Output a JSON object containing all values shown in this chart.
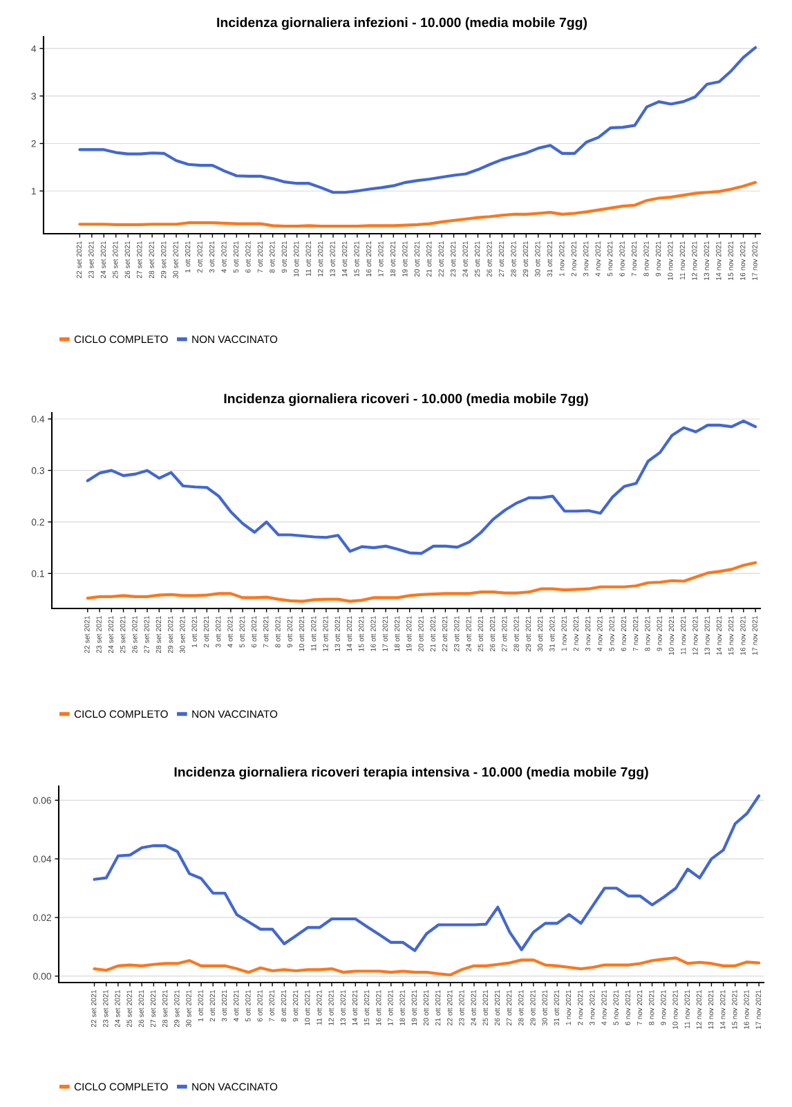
{
  "chart_data": [
    {
      "type": "line",
      "title": "Incidenza giornaliera infezioni - 10.000 (media mobile 7gg)",
      "categories": [
        "22 set 2021",
        "23 set 2021",
        "24 set 2021",
        "25 set 2021",
        "26 set 2021",
        "27 set 2021",
        "28 set 2021",
        "29 set 2021",
        "30 set 2021",
        "1 ott 2021",
        "2 ott 2021",
        "3 ott 2021",
        "4 ott 2021",
        "5 ott 2021",
        "6 ott 2021",
        "7 ott 2021",
        "8 ott 2021",
        "9 ott 2021",
        "10 ott 2021",
        "11 ott 2021",
        "12 ott 2021",
        "13 ott 2021",
        "14 ott 2021",
        "15 ott 2021",
        "16 ott 2021",
        "17 ott 2021",
        "18 ott 2021",
        "19 ott 2021",
        "20 ott 2021",
        "21 ott 2021",
        "22 ott 2021",
        "23 ott 2021",
        "24 ott 2021",
        "25 ott 2021",
        "26 ott 2021",
        "27 ott 2021",
        "28 ott 2021",
        "29 ott 2021",
        "30 ott 2021",
        "31 ott 2021",
        "1 nov 2021",
        "2 nov 2021",
        "3 nov 2021",
        "4 nov 2021",
        "5 nov 2021",
        "6 nov 2021",
        "7 nov 2021",
        "8 nov 2021",
        "9 nov 2021",
        "10 nov 2021",
        "11 nov 2021",
        "12 nov 2021",
        "13 nov 2021",
        "14 nov 2021",
        "15 nov 2021",
        "16 nov 2021",
        "17 nov 2021"
      ],
      "series": [
        {
          "name": "CICLO COMPLETO",
          "color": "#ff7518",
          "values": [
            0.3,
            0.3,
            0.3,
            0.29,
            0.29,
            0.29,
            0.3,
            0.3,
            0.3,
            0.33,
            0.33,
            0.33,
            0.32,
            0.31,
            0.31,
            0.31,
            0.27,
            0.26,
            0.26,
            0.27,
            0.26,
            0.26,
            0.26,
            0.26,
            0.27,
            0.27,
            0.27,
            0.28,
            0.29,
            0.31,
            0.35,
            0.38,
            0.41,
            0.44,
            0.46,
            0.49,
            0.51,
            0.51,
            0.53,
            0.55,
            0.51,
            0.53,
            0.56,
            0.6,
            0.64,
            0.68,
            0.7,
            0.8,
            0.85,
            0.87,
            0.91,
            0.95,
            0.97,
            0.99,
            1.04,
            1.1,
            1.18
          ]
        },
        {
          "name": "NON VACCINATO",
          "color": "#4267d2",
          "values": [
            1.87,
            1.87,
            1.87,
            1.81,
            1.78,
            1.78,
            1.8,
            1.79,
            1.64,
            1.56,
            1.54,
            1.54,
            1.42,
            1.32,
            1.31,
            1.31,
            1.26,
            1.19,
            1.16,
            1.16,
            1.07,
            0.97,
            0.97,
            1.0,
            1.04,
            1.07,
            1.11,
            1.18,
            1.22,
            1.25,
            1.29,
            1.33,
            1.36,
            1.45,
            1.56,
            1.66,
            1.73,
            1.8,
            1.9,
            1.96,
            1.79,
            1.79,
            2.03,
            2.13,
            2.33,
            2.34,
            2.38,
            2.77,
            2.88,
            2.83,
            2.88,
            2.98,
            3.25,
            3.3,
            3.53,
            3.81,
            4.02
          ]
        }
      ],
      "ylim": [
        0.1,
        4.25
      ],
      "yticks": [
        1,
        2,
        3,
        4
      ],
      "grid": "y",
      "legend": "bottom",
      "marker": "none",
      "line_style": "solid"
    },
    {
      "type": "line",
      "title": "Incidenza giornaliera ricoveri - 10.000 (media mobile 7gg)",
      "categories": [
        "22 set 2021",
        "23 set 2021",
        "24 set 2021",
        "25 set 2021",
        "26 set 2021",
        "27 set 2021",
        "28 set 2021",
        "29 set 2021",
        "30 set 2021",
        "1 ott 2021",
        "2 ott 2021",
        "3 ott 2021",
        "4 ott 2021",
        "5 ott 2021",
        "6 ott 2021",
        "7 ott 2021",
        "8 ott 2021",
        "9 ott 2021",
        "10 ott 2021",
        "11 ott 2021",
        "12 ott 2021",
        "13 ott 2021",
        "14 ott 2021",
        "15 ott 2021",
        "16 ott 2021",
        "17 ott 2021",
        "18 ott 2021",
        "19 ott 2021",
        "20 ott 2021",
        "21 ott 2021",
        "22 ott 2021",
        "23 ott 2021",
        "24 ott 2021",
        "25 ott 2021",
        "26 ott 2021",
        "27 ott 2021",
        "28 ott 2021",
        "29 ott 2021",
        "30 ott 2021",
        "31 ott 2021",
        "1 nov 2021",
        "2 nov 2021",
        "3 nov 2021",
        "4 nov 2021",
        "5 nov 2021",
        "6 nov 2021",
        "7 nov 2021",
        "8 nov 2021",
        "9 nov 2021",
        "10 nov 2021",
        "11 nov 2021",
        "12 nov 2021",
        "13 nov 2021",
        "14 nov 2021",
        "15 nov 2021",
        "16 nov 2021",
        "17 nov 2021"
      ],
      "series": [
        {
          "name": "CICLO COMPLETO",
          "color": "#ff7518",
          "values": [
            0.052,
            0.055,
            0.055,
            0.057,
            0.055,
            0.055,
            0.058,
            0.059,
            0.057,
            0.057,
            0.058,
            0.061,
            0.061,
            0.053,
            0.053,
            0.054,
            0.05,
            0.047,
            0.046,
            0.049,
            0.05,
            0.05,
            0.046,
            0.048,
            0.053,
            0.053,
            0.053,
            0.057,
            0.059,
            0.06,
            0.061,
            0.061,
            0.061,
            0.064,
            0.064,
            0.062,
            0.062,
            0.064,
            0.07,
            0.07,
            0.068,
            0.069,
            0.07,
            0.074,
            0.074,
            0.074,
            0.076,
            0.082,
            0.083,
            0.086,
            0.085,
            0.093,
            0.101,
            0.104,
            0.108,
            0.116,
            0.121
          ]
        },
        {
          "name": "NON VACCINATO",
          "color": "#4267d2",
          "values": [
            0.28,
            0.295,
            0.3,
            0.29,
            0.293,
            0.3,
            0.285,
            0.296,
            0.27,
            0.268,
            0.267,
            0.25,
            0.22,
            0.197,
            0.18,
            0.2,
            0.175,
            0.175,
            0.173,
            0.171,
            0.17,
            0.174,
            0.143,
            0.152,
            0.15,
            0.153,
            0.147,
            0.14,
            0.139,
            0.153,
            0.153,
            0.151,
            0.161,
            0.18,
            0.205,
            0.223,
            0.237,
            0.247,
            0.247,
            0.25,
            0.221,
            0.221,
            0.222,
            0.217,
            0.248,
            0.269,
            0.275,
            0.318,
            0.335,
            0.368,
            0.383,
            0.375,
            0.388,
            0.388,
            0.385,
            0.396,
            0.385
          ]
        }
      ],
      "ylim": [
        0.032,
        0.412
      ],
      "yticks": [
        0.1,
        0.2,
        0.3,
        0.4
      ],
      "grid": "y",
      "legend": "bottom",
      "marker": "none",
      "line_style": "solid"
    },
    {
      "type": "line",
      "title": "Incidenza giornaliera ricoveri terapia intensiva - 10.000 (media mobile 7gg)",
      "categories": [
        "22 set 2021",
        "23 set 2021",
        "24 set 2021",
        "25 set 2021",
        "26 set 2021",
        "27 set 2021",
        "28 set 2021",
        "29 set 2021",
        "30 set 2021",
        "1 ott 2021",
        "2 ott 2021",
        "3 ott 2021",
        "4 ott 2021",
        "5 ott 2021",
        "6 ott 2021",
        "7 ott 2021",
        "8 ott 2021",
        "9 ott 2021",
        "10 ott 2021",
        "11 ott 2021",
        "12 ott 2021",
        "13 ott 2021",
        "14 ott 2021",
        "15 ott 2021",
        "16 ott 2021",
        "17 ott 2021",
        "18 ott 2021",
        "19 ott 2021",
        "20 ott 2021",
        "21 ott 2021",
        "22 ott 2021",
        "23 ott 2021",
        "24 ott 2021",
        "25 ott 2021",
        "26 ott 2021",
        "27 ott 2021",
        "28 ott 2021",
        "29 ott 2021",
        "30 ott 2021",
        "31 ott 2021",
        "1 nov 2021",
        "2 nov 2021",
        "3 nov 2021",
        "4 nov 2021",
        "5 nov 2021",
        "6 nov 2021",
        "7 nov 2021",
        "8 nov 2021",
        "9 nov 2021",
        "10 nov 2021",
        "11 nov 2021",
        "12 nov 2021",
        "13 nov 2021",
        "14 nov 2021",
        "15 nov 2021",
        "16 nov 2021",
        "17 nov 2021"
      ],
      "series": [
        {
          "name": "CICLO COMPLETO",
          "color": "#ff7518",
          "values": [
            0.0025,
            0.002,
            0.0035,
            0.0038,
            0.0035,
            0.004,
            0.0043,
            0.0043,
            0.0053,
            0.0035,
            0.0035,
            0.0035,
            0.0025,
            0.0013,
            0.0028,
            0.0018,
            0.0022,
            0.0018,
            0.0022,
            0.0022,
            0.0025,
            0.0013,
            0.0017,
            0.0017,
            0.0017,
            0.0013,
            0.0017,
            0.0013,
            0.0013,
            0.0008,
            0.0004,
            0.0023,
            0.0035,
            0.0035,
            0.004,
            0.0045,
            0.0055,
            0.0055,
            0.0038,
            0.0035,
            0.003,
            0.0025,
            0.003,
            0.0038,
            0.0038,
            0.0038,
            0.0043,
            0.0053,
            0.0058,
            0.0062,
            0.0043,
            0.0047,
            0.0043,
            0.0035,
            0.0035,
            0.0048,
            0.0045
          ]
        },
        {
          "name": "NON VACCINATO",
          "color": "#4267d2",
          "values": [
            0.033,
            0.0335,
            0.041,
            0.0413,
            0.0438,
            0.0445,
            0.0445,
            0.0425,
            0.035,
            0.0333,
            0.0283,
            0.0283,
            0.021,
            0.0185,
            0.016,
            0.016,
            0.011,
            0.0138,
            0.0166,
            0.0166,
            0.0195,
            0.0195,
            0.0195,
            0.0168,
            0.0142,
            0.0115,
            0.0115,
            0.0087,
            0.0145,
            0.0175,
            0.0175,
            0.0175,
            0.0175,
            0.0177,
            0.0235,
            0.015,
            0.009,
            0.015,
            0.018,
            0.018,
            0.021,
            0.018,
            0.024,
            0.03,
            0.03,
            0.0273,
            0.0273,
            0.0243,
            0.027,
            0.03,
            0.0365,
            0.0335,
            0.04,
            0.043,
            0.052,
            0.0555,
            0.0615
          ]
        }
      ],
      "ylim": [
        -0.0022,
        0.0648
      ],
      "yticks": [
        {
          "value": 0,
          "label": "0.00"
        },
        {
          "value": 0.02,
          "label": "0.02"
        },
        {
          "value": 0.04,
          "label": "0.04"
        },
        {
          "value": 0.06,
          "label": "0.06"
        }
      ],
      "grid": "y",
      "legend": "bottom",
      "marker": "none",
      "line_style": "solid"
    }
  ]
}
